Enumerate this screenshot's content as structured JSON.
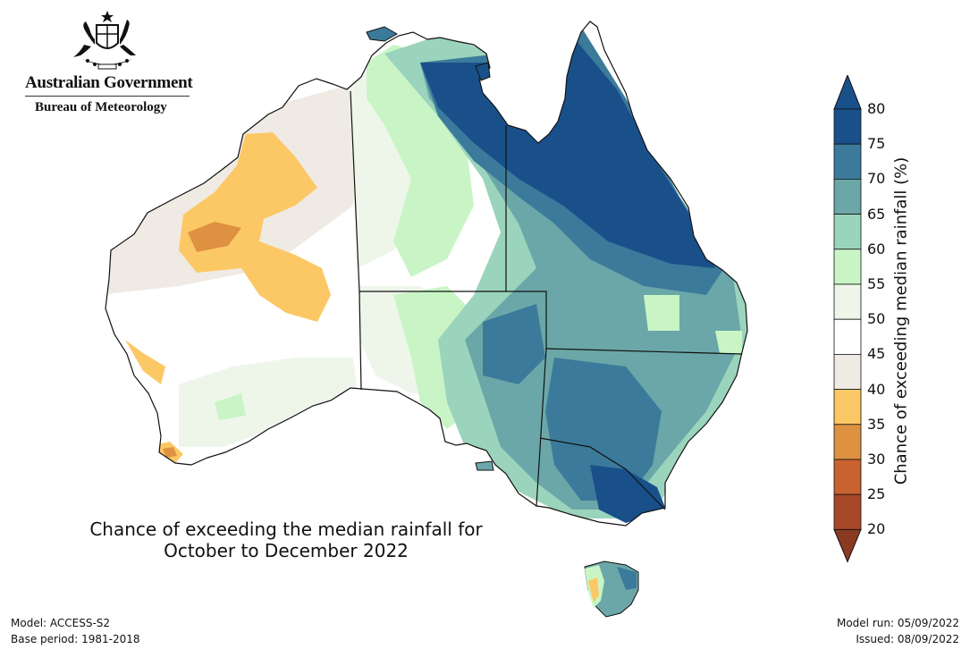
{
  "branding": {
    "government": "Australian Government",
    "bureau": "Bureau of Meteorology"
  },
  "map_title": {
    "line1": "Chance of exceeding the median rainfall for",
    "line2": "October to December 2022"
  },
  "footer": {
    "model": "Model: ACCESS-S2",
    "base_period": "Base period: 1981-2018",
    "model_run": "Model run: 05/09/2022",
    "issued": "Issued: 08/09/2022"
  },
  "legend": {
    "title": "Chance of exceeding median rainfall (%)",
    "ticks": [
      "20",
      "25",
      "30",
      "35",
      "40",
      "45",
      "50",
      "55",
      "60",
      "65",
      "70",
      "75",
      "80"
    ],
    "colors": [
      "#a8482a",
      "#c8622f",
      "#de9140",
      "#fcc865",
      "#efeae3",
      "#ffffff",
      "#eef6ea",
      "#c9f5c6",
      "#9bd4bc",
      "#6ba7a8",
      "#3c7a9b",
      "#19508a"
    ],
    "below_color": "#8b3a22",
    "above_color": "#19508a"
  }
}
